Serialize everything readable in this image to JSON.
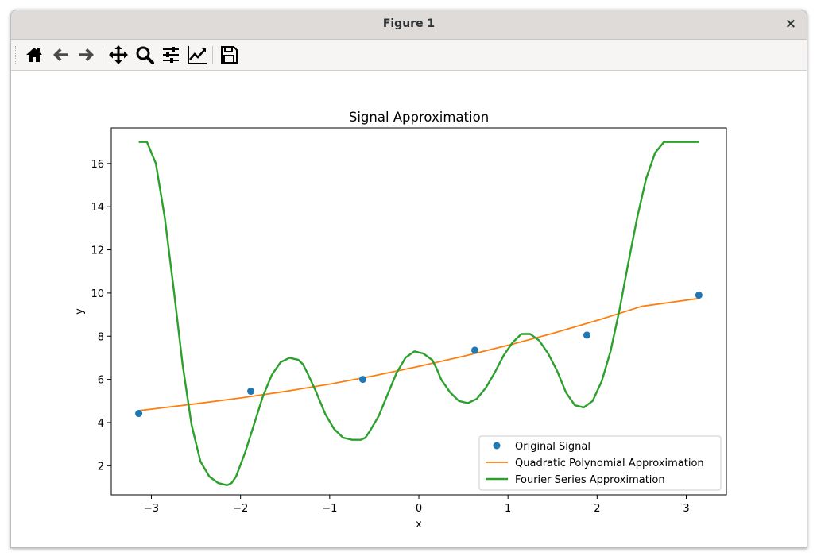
{
  "window": {
    "title": "Figure 1",
    "close_glyph": "×"
  },
  "toolbar": {
    "buttons": [
      {
        "name": "home-icon"
      },
      {
        "name": "back-icon"
      },
      {
        "name": "forward-icon"
      },
      {
        "name": "pan-icon"
      },
      {
        "name": "zoom-icon"
      },
      {
        "name": "configure-subplots-icon"
      },
      {
        "name": "edit-axis-icon"
      },
      {
        "name": "save-icon"
      }
    ]
  },
  "chart_data": {
    "type": "line",
    "title": "Signal Approximation",
    "xlabel": "x",
    "ylabel": "y",
    "xlim": [
      -3.45,
      3.45
    ],
    "ylim": [
      0.65,
      17.65
    ],
    "xticks": [
      -3,
      -2,
      -1,
      0,
      1,
      2,
      3
    ],
    "xtick_labels": [
      "−3",
      "−2",
      "−1",
      "0",
      "1",
      "2",
      "3"
    ],
    "yticks": [
      2,
      4,
      6,
      8,
      10,
      12,
      14,
      16
    ],
    "ytick_labels": [
      "2",
      "4",
      "6",
      "8",
      "10",
      "12",
      "14",
      "16"
    ],
    "grid": false,
    "legend_position": "lower right",
    "series": [
      {
        "name": "Original Signal",
        "kind": "scatter",
        "color": "#1f77b4",
        "x": [
          -3.1416,
          -1.885,
          -0.6283,
          0.6283,
          1.885,
          3.1416
        ],
        "y": [
          4.42,
          5.45,
          6.0,
          7.35,
          8.05,
          9.9
        ]
      },
      {
        "name": "Quadratic Polynomial Approximation",
        "kind": "line",
        "color": "#ff7f0e",
        "x": [
          -3.1416,
          -2.5,
          -2.0,
          -1.5,
          -1.0,
          -0.5,
          0.0,
          0.5,
          1.0,
          1.5,
          2.0,
          2.5,
          3.1416
        ],
        "y": [
          4.55,
          4.87,
          5.14,
          5.44,
          5.78,
          6.17,
          6.6,
          7.07,
          7.58,
          8.13,
          8.73,
          9.38,
          9.75
        ]
      },
      {
        "name": "Fourier Series Approximation",
        "kind": "line",
        "color": "#2ca02c",
        "x": [
          -3.1416,
          -3.05,
          -2.95,
          -2.85,
          -2.75,
          -2.65,
          -2.55,
          -2.45,
          -2.35,
          -2.25,
          -2.15,
          -2.1,
          -2.05,
          -1.95,
          -1.85,
          -1.75,
          -1.65,
          -1.55,
          -1.45,
          -1.35,
          -1.3,
          -1.25,
          -1.15,
          -1.05,
          -0.95,
          -0.85,
          -0.75,
          -0.65,
          -0.6,
          -0.55,
          -0.45,
          -0.35,
          -0.25,
          -0.15,
          -0.05,
          0.05,
          0.15,
          0.2,
          0.25,
          0.35,
          0.45,
          0.55,
          0.65,
          0.75,
          0.85,
          0.95,
          1.05,
          1.15,
          1.25,
          1.35,
          1.45,
          1.55,
          1.6,
          1.65,
          1.75,
          1.85,
          1.95,
          2.05,
          2.15,
          2.25,
          2.3,
          2.35,
          2.45,
          2.55,
          2.65,
          2.75,
          2.85,
          2.95,
          3.05,
          3.1416
        ],
        "y": [
          17.0,
          17.0,
          16.0,
          13.5,
          10.2,
          6.7,
          3.9,
          2.2,
          1.5,
          1.2,
          1.1,
          1.2,
          1.5,
          2.6,
          3.9,
          5.2,
          6.2,
          6.8,
          7.0,
          6.9,
          6.7,
          6.3,
          5.4,
          4.4,
          3.7,
          3.3,
          3.2,
          3.2,
          3.3,
          3.6,
          4.3,
          5.3,
          6.3,
          7.0,
          7.3,
          7.2,
          6.9,
          6.5,
          6.0,
          5.4,
          5.0,
          4.9,
          5.1,
          5.6,
          6.3,
          7.1,
          7.7,
          8.1,
          8.1,
          7.8,
          7.2,
          6.4,
          5.9,
          5.4,
          4.8,
          4.7,
          5.0,
          5.9,
          7.3,
          9.2,
          10.3,
          11.4,
          13.5,
          15.3,
          16.5,
          17.0,
          17.0,
          17.0,
          17.0,
          17.0
        ]
      }
    ]
  }
}
